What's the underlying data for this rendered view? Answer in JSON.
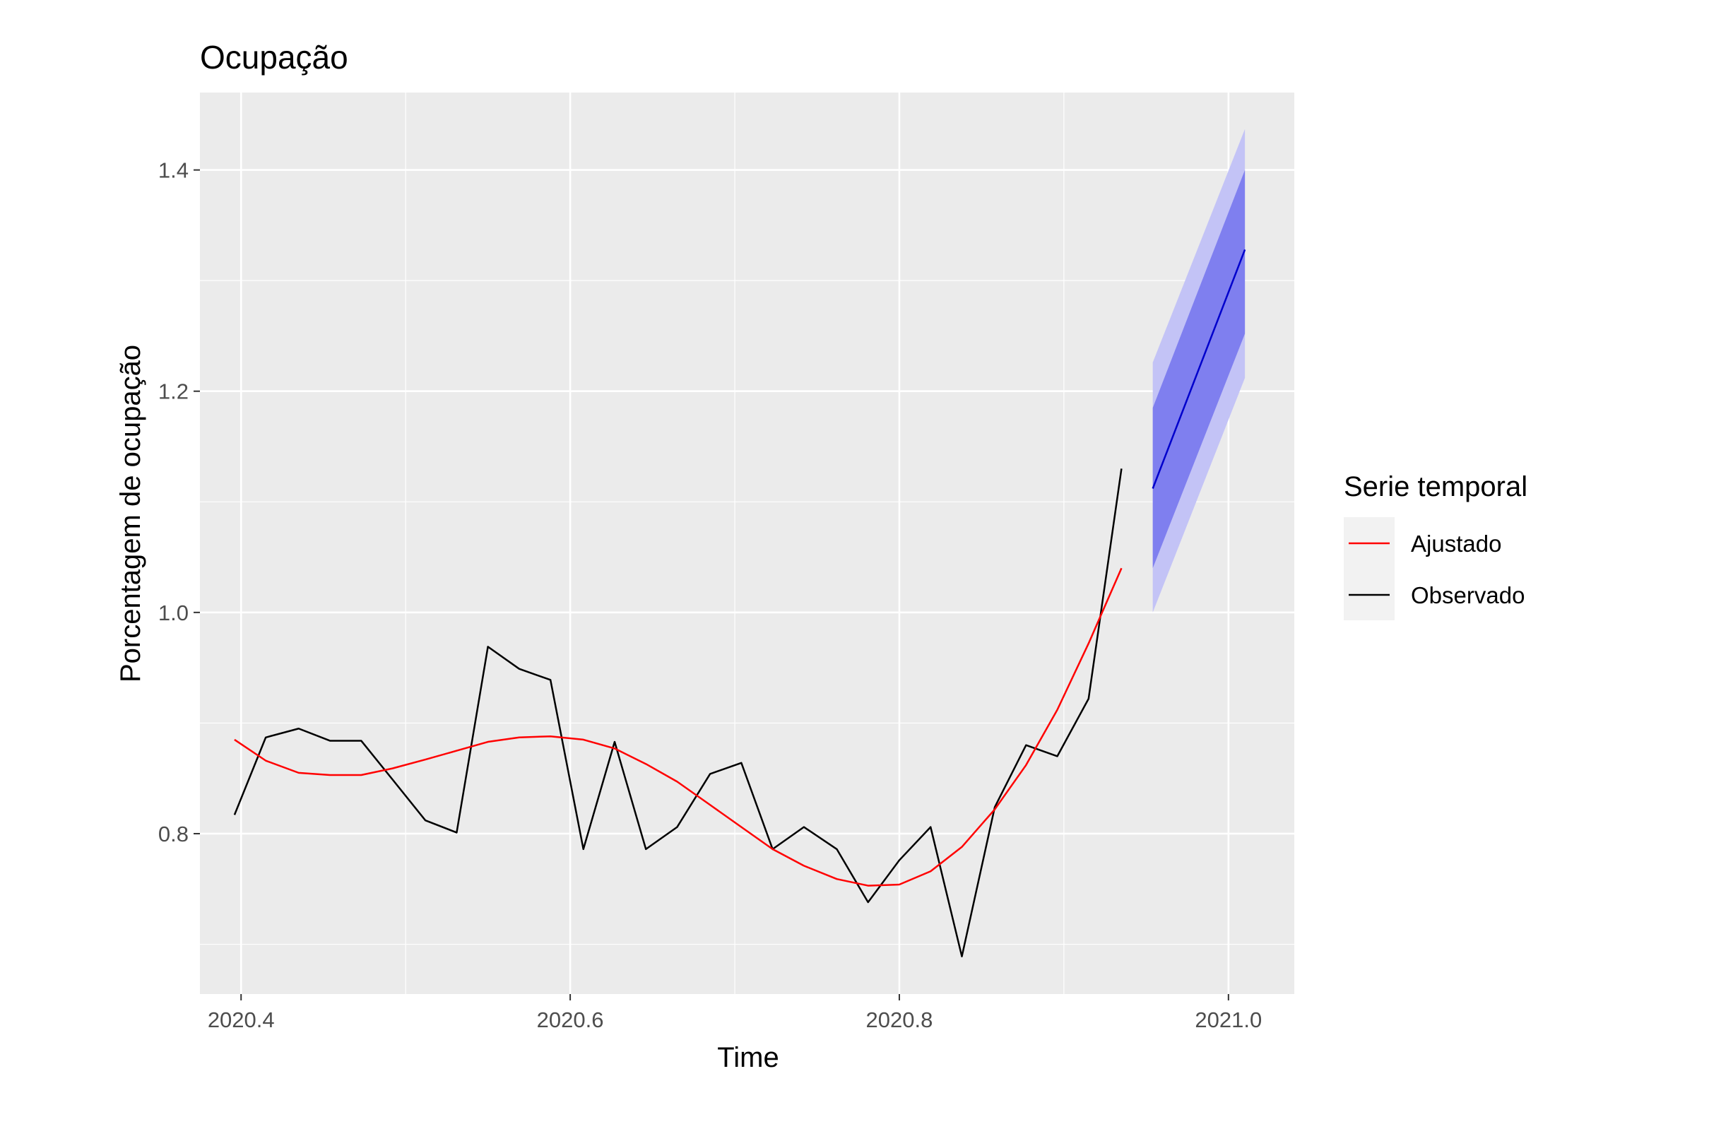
{
  "chart_data": {
    "type": "line",
    "title": "Ocupação",
    "xlabel": "Time",
    "ylabel": "Porcentagem de ocupação",
    "xlim": [
      2020.375,
      2021.04
    ],
    "ylim": [
      0.655,
      1.47
    ],
    "x_ticks": [
      2020.4,
      2020.6,
      2020.8,
      2021.0
    ],
    "x_tick_labels": [
      "2020.4",
      "2020.6",
      "2020.8",
      "2021.0"
    ],
    "y_ticks": [
      0.8,
      1.0,
      1.2,
      1.4
    ],
    "y_tick_labels": [
      "0.8",
      "1.0",
      "1.2",
      "1.4"
    ],
    "grid": true,
    "legend": {
      "title": "Serie temporal",
      "position": "right",
      "entries": [
        {
          "label": "Ajustado",
          "color": "#ff0000"
        },
        {
          "label": "Observado",
          "color": "#000000"
        }
      ]
    },
    "series": [
      {
        "name": "Observado",
        "color": "#000000",
        "x": [
          2020.396,
          2020.415,
          2020.435,
          2020.454,
          2020.473,
          2020.492,
          2020.512,
          2020.531,
          2020.55,
          2020.569,
          2020.588,
          2020.608,
          2020.627,
          2020.646,
          2020.665,
          2020.685,
          2020.704,
          2020.723,
          2020.742,
          2020.762,
          2020.781,
          2020.8,
          2020.819,
          2020.838,
          2020.858,
          2020.877,
          2020.896,
          2020.915,
          2020.935
        ],
        "values": [
          0.817,
          0.887,
          0.895,
          0.884,
          0.884,
          0.849,
          0.812,
          0.801,
          0.969,
          0.949,
          0.939,
          0.786,
          0.883,
          0.786,
          0.806,
          0.854,
          0.864,
          0.786,
          0.806,
          0.786,
          0.738,
          0.776,
          0.806,
          0.689,
          0.824,
          0.88,
          0.87,
          0.922,
          1.13
        ]
      },
      {
        "name": "Ajustado",
        "color": "#ff0000",
        "x": [
          2020.396,
          2020.415,
          2020.435,
          2020.454,
          2020.473,
          2020.492,
          2020.512,
          2020.531,
          2020.55,
          2020.569,
          2020.588,
          2020.608,
          2020.627,
          2020.646,
          2020.665,
          2020.685,
          2020.704,
          2020.723,
          2020.742,
          2020.762,
          2020.781,
          2020.8,
          2020.819,
          2020.838,
          2020.858,
          2020.877,
          2020.896,
          2020.915,
          2020.935
        ],
        "values": [
          0.885,
          0.866,
          0.855,
          0.853,
          0.853,
          0.859,
          0.867,
          0.875,
          0.883,
          0.887,
          0.888,
          0.885,
          0.877,
          0.863,
          0.847,
          0.826,
          0.806,
          0.786,
          0.771,
          0.759,
          0.753,
          0.754,
          0.766,
          0.788,
          0.822,
          0.862,
          0.912,
          0.972,
          1.04
        ]
      }
    ],
    "forecast": {
      "color": "#0000cc",
      "x": [
        2020.954,
        2021.01
      ],
      "mean": [
        1.112,
        1.328
      ],
      "lower80": [
        1.04,
        1.252
      ],
      "upper80": [
        1.185,
        1.4
      ],
      "lower95": [
        1.0,
        1.212
      ],
      "upper95": [
        1.226,
        1.437
      ],
      "band80_color": "#7f7fef",
      "band95_color": "#c3c3f6"
    },
    "panel_background": "#ebebeb",
    "grid_color": "#ffffff"
  }
}
